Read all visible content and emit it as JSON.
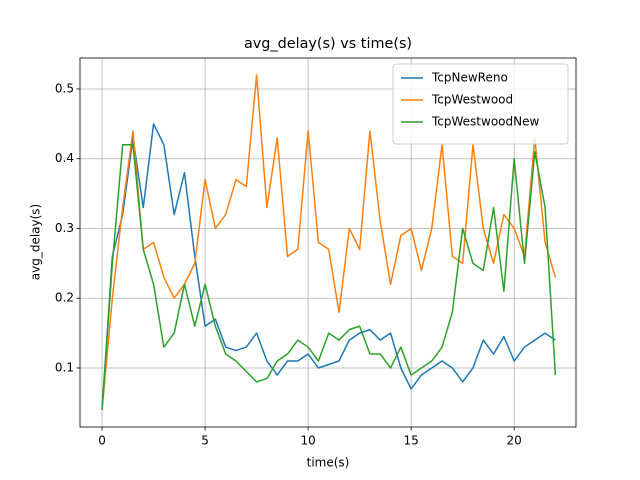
{
  "chart_data": {
    "type": "line",
    "title": "avg_delay(s) vs time(s)",
    "x_label": "time(s)",
    "y_label": "avg_delay(s)",
    "x": [
      0,
      0.5,
      1,
      1.5,
      2,
      2.5,
      3,
      3.5,
      4,
      4.5,
      5,
      5.5,
      6,
      6.5,
      7,
      7.5,
      8,
      8.5,
      9,
      9.5,
      10,
      10.5,
      11,
      11.5,
      12,
      12.5,
      13,
      13.5,
      14,
      14.5,
      15,
      15.5,
      16,
      16.5,
      17,
      17.5,
      18,
      18.5,
      19,
      19.5,
      20,
      20.5,
      21,
      21.5,
      22
    ],
    "series": [
      {
        "name": "TcpNewReno",
        "color": "#1f77b4",
        "values": [
          0.04,
          0.26,
          0.32,
          0.43,
          0.33,
          0.45,
          0.42,
          0.32,
          0.38,
          0.26,
          0.16,
          0.17,
          0.13,
          0.125,
          0.13,
          0.15,
          0.11,
          0.09,
          0.11,
          0.11,
          0.12,
          0.1,
          0.105,
          0.11,
          0.14,
          0.15,
          0.155,
          0.14,
          0.15,
          0.1,
          0.07,
          0.09,
          0.1,
          0.11,
          0.1,
          0.08,
          0.1,
          0.14,
          0.12,
          0.145,
          0.11,
          0.13,
          0.14,
          0.15,
          0.14
        ]
      },
      {
        "name": "TcpWestwood",
        "color": "#ff7f0e",
        "values": [
          0.04,
          0.2,
          0.33,
          0.44,
          0.27,
          0.28,
          0.23,
          0.2,
          0.22,
          0.25,
          0.37,
          0.3,
          0.32,
          0.37,
          0.36,
          0.52,
          0.33,
          0.43,
          0.26,
          0.27,
          0.44,
          0.28,
          0.27,
          0.18,
          0.3,
          0.27,
          0.44,
          0.31,
          0.22,
          0.29,
          0.3,
          0.24,
          0.3,
          0.42,
          0.26,
          0.25,
          0.42,
          0.3,
          0.25,
          0.32,
          0.3,
          0.26,
          0.43,
          0.28,
          0.23
        ]
      },
      {
        "name": "TcpWestwoodNew",
        "color": "#2ca02c",
        "values": [
          0.04,
          0.25,
          0.42,
          0.42,
          0.27,
          0.22,
          0.13,
          0.15,
          0.22,
          0.16,
          0.22,
          0.16,
          0.12,
          0.11,
          0.095,
          0.08,
          0.085,
          0.11,
          0.12,
          0.14,
          0.13,
          0.11,
          0.15,
          0.14,
          0.155,
          0.16,
          0.12,
          0.12,
          0.1,
          0.13,
          0.09,
          0.1,
          0.11,
          0.13,
          0.18,
          0.3,
          0.25,
          0.24,
          0.33,
          0.21,
          0.4,
          0.25,
          0.41,
          0.33,
          0.09
        ]
      }
    ],
    "xlim": [
      -1.07,
      23.0
    ],
    "ylim": [
      0.0154,
      0.5444
    ],
    "xticks": [
      0,
      5,
      10,
      15,
      20
    ],
    "yticks": [
      0.1,
      0.2,
      0.3,
      0.4,
      0.5
    ],
    "grid": true,
    "legend": "upper right"
  }
}
